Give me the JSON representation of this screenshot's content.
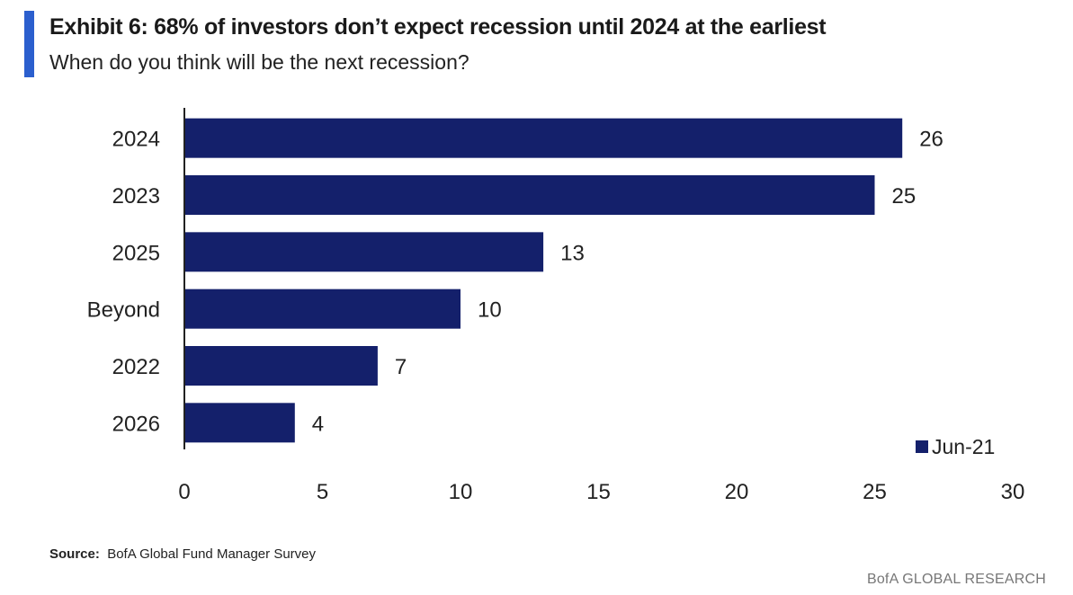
{
  "header": {
    "title": "Exhibit 6: 68% of investors don’t expect recession until 2024 at the earliest",
    "subtitle": "When do you think will be the next recession?"
  },
  "source": {
    "label": "Source:",
    "text": "BofA Global Fund Manager Survey"
  },
  "footer": {
    "brand": "BofA GLOBAL RESEARCH"
  },
  "colors": {
    "bar": "#14206b",
    "accent": "#2b5fce"
  },
  "chart_data": {
    "type": "bar",
    "orientation": "horizontal",
    "title": "Exhibit 6: 68% of investors don’t expect recession until 2024 at the earliest",
    "subtitle": "When do you think will be the next recession?",
    "categories": [
      "2024",
      "2023",
      "2025",
      "Beyond",
      "2022",
      "2026"
    ],
    "series": [
      {
        "name": "Jun-21",
        "values": [
          26,
          25,
          13,
          10,
          7,
          4
        ],
        "color": "#14206b"
      }
    ],
    "data_labels": [
      "26",
      "25",
      "13",
      "10",
      "7",
      "4"
    ],
    "xlim": [
      0,
      30
    ],
    "xticks": [
      0,
      5,
      10,
      15,
      20,
      25,
      30
    ],
    "xlabel": "",
    "ylabel": "",
    "grid": false,
    "legend_position": "bottom-right"
  }
}
